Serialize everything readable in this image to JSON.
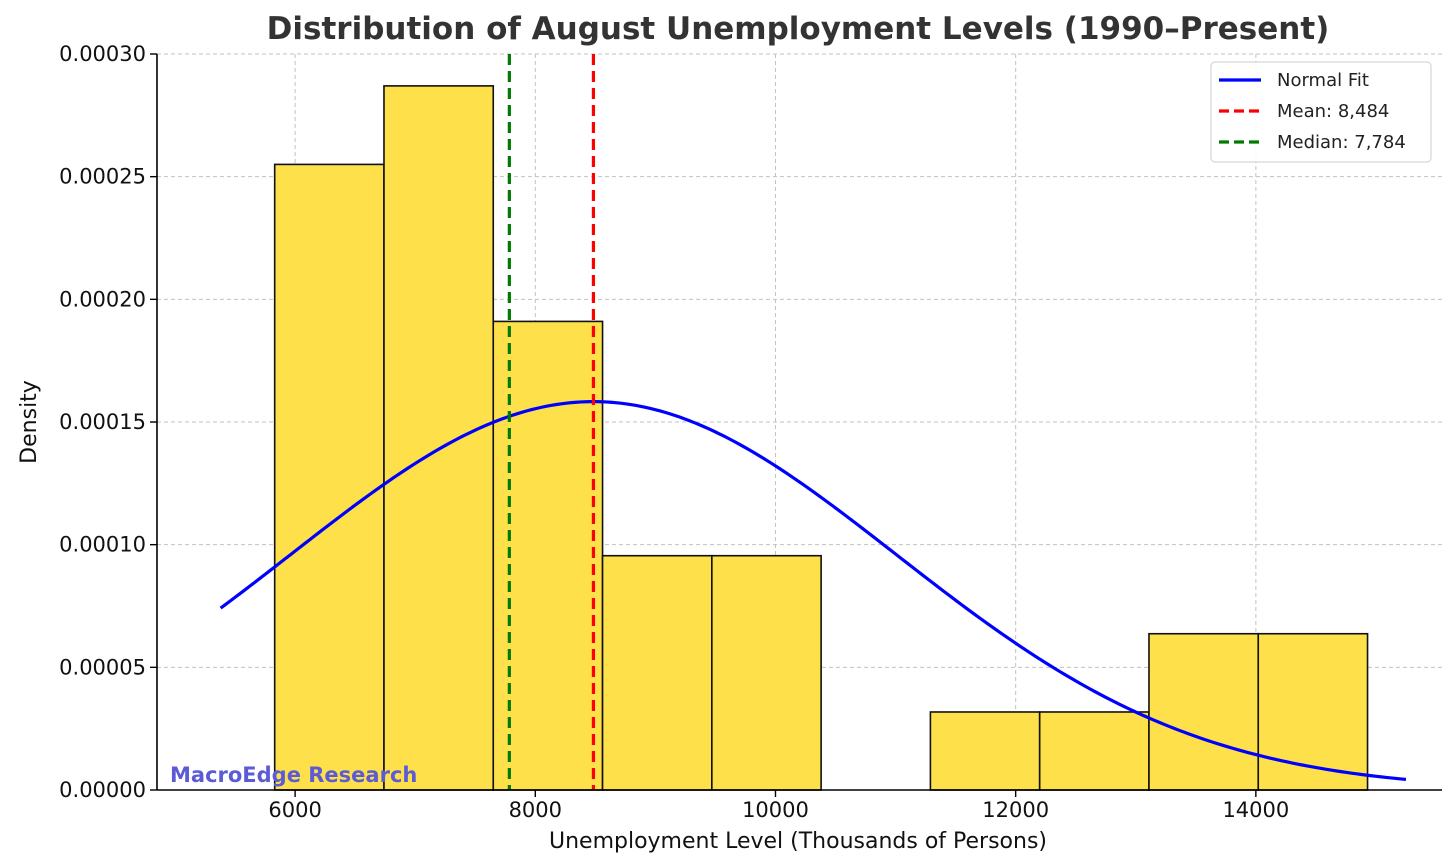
{
  "chart_data": {
    "type": "bar",
    "title": "Distribution of August Unemployment Levels (1990–Present)",
    "xlabel": "Unemployment Level (Thousands of Persons)",
    "ylabel": "Density",
    "xlim": [
      4850,
      15550
    ],
    "ylim": [
      0,
      0.0003
    ],
    "x_ticks": [
      6000,
      8000,
      10000,
      12000,
      14000
    ],
    "x_tick_labels": [
      "6000",
      "8000",
      "10000",
      "12000",
      "14000"
    ],
    "y_ticks": [
      0,
      5e-05,
      0.0001,
      0.00015,
      0.0002,
      0.00025,
      0.0003
    ],
    "y_tick_labels": [
      "0.00000",
      "0.00005",
      "0.00010",
      "0.00015",
      "0.00020",
      "0.00025",
      "0.00030"
    ],
    "grid": true,
    "legend_position": "top-right",
    "bins": [
      {
        "start": 5830,
        "end": 6740,
        "density": 0.000255
      },
      {
        "start": 6740,
        "end": 7650,
        "density": 0.000287
      },
      {
        "start": 7650,
        "end": 8560,
        "density": 0.000191
      },
      {
        "start": 8560,
        "end": 9470,
        "density": 9.55e-05
      },
      {
        "start": 9470,
        "end": 10380,
        "density": 9.55e-05
      },
      {
        "start": 10380,
        "end": 11290,
        "density": 0
      },
      {
        "start": 11290,
        "end": 12200,
        "density": 3.18e-05
      },
      {
        "start": 12200,
        "end": 13110,
        "density": 3.18e-05
      },
      {
        "start": 13110,
        "end": 14020,
        "density": 6.37e-05
      },
      {
        "start": 14020,
        "end": 14930,
        "density": 6.37e-05
      }
    ],
    "normal_fit": {
      "mean": 8484,
      "std": 2520,
      "x_range": [
        5380,
        15250
      ]
    },
    "mean_line": {
      "x": 8484,
      "label": "Mean: 8,484"
    },
    "median_line": {
      "x": 7784,
      "label": "Median: 7,784"
    },
    "legend": [
      {
        "label": "Normal Fit",
        "style": "solid",
        "color": "#0000ff"
      },
      {
        "label": "Mean: 8,484",
        "style": "dashed",
        "color": "#ff0000"
      },
      {
        "label": "Median: 7,784",
        "style": "dashed",
        "color": "#007a00"
      }
    ],
    "colors": {
      "bar_fill": "#fde04a",
      "bar_edge": "#111111",
      "fit": "#0000ff",
      "mean": "#ff0000",
      "median": "#007a00",
      "grid": "#c2c2c2"
    }
  },
  "watermark": {
    "text": "MacroEdge Research",
    "color": "#5b5bd6"
  }
}
